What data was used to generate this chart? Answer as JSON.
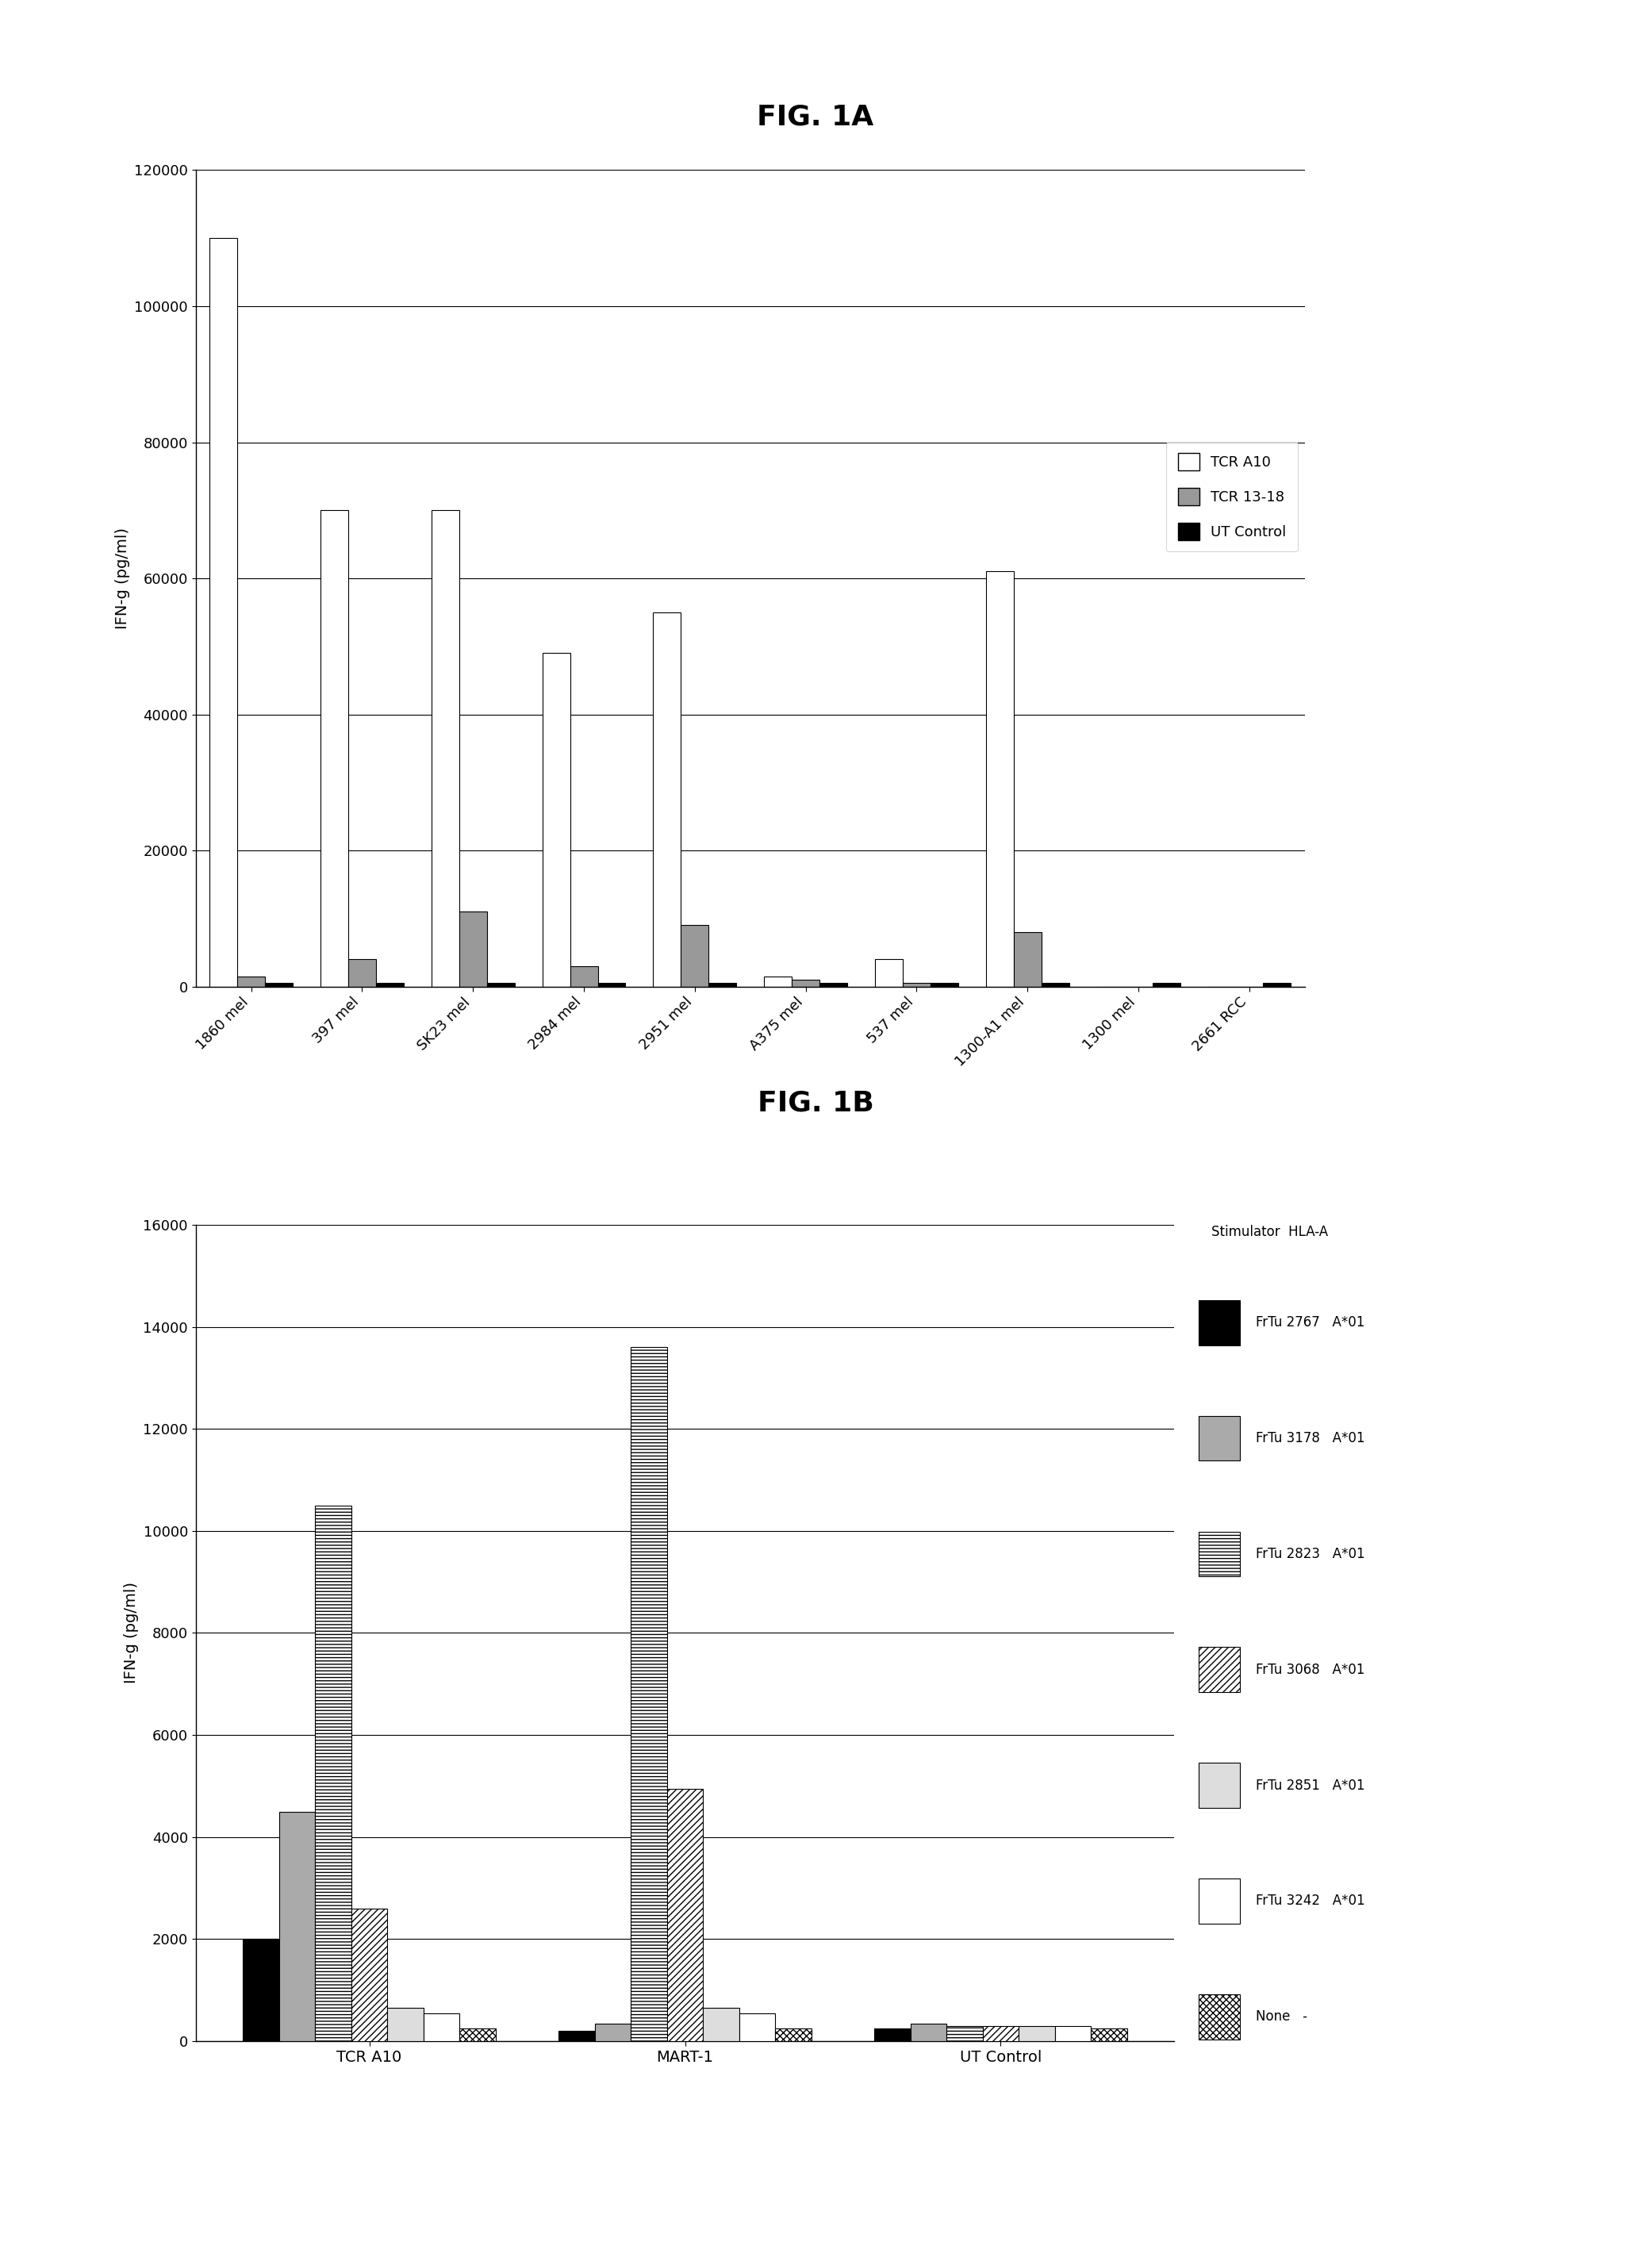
{
  "fig1a": {
    "title": "FIG. 1A",
    "categories": [
      "1860 mel",
      "397 mel",
      "SK23 mel",
      "2984 mel",
      "2951 mel",
      "A375 mel",
      "537 mel",
      "1300-A1 mel",
      "1300 mel",
      "2661 RCC"
    ],
    "tcr_a10": [
      110000,
      70000,
      70000,
      49000,
      55000,
      1500,
      4000,
      61000,
      0,
      0
    ],
    "tcr_1318": [
      1500,
      4000,
      11000,
      3000,
      9000,
      1000,
      500,
      8000,
      0,
      0
    ],
    "ut_control": [
      500,
      500,
      500,
      500,
      500,
      500,
      500,
      500,
      500,
      500
    ],
    "ylabel": "IFN-g (pg/ml)",
    "ylim": [
      0,
      120000
    ],
    "yticks": [
      0,
      20000,
      40000,
      60000,
      80000,
      100000,
      120000
    ]
  },
  "fig1b": {
    "title": "FIG. 1B",
    "categories": [
      "TCR A10",
      "MART-1",
      "UT Control"
    ],
    "series": {
      "FrTu 2767": [
        2000,
        200,
        250
      ],
      "FrTu 3178": [
        4500,
        350,
        350
      ],
      "FrTu 2823": [
        10500,
        13600,
        300
      ],
      "FrTu 3068": [
        2600,
        4950,
        300
      ],
      "FrTu 2851": [
        650,
        650,
        300
      ],
      "FrTu 3242": [
        550,
        550,
        300
      ],
      "None": [
        250,
        250,
        250
      ]
    },
    "legend_hla": {
      "FrTu 2767": "A*01",
      "FrTu 3178": "A*01",
      "FrTu 2823": "A*01",
      "FrTu 3068": "A*01",
      "FrTu 2851": "A*01",
      "FrTu 3242": "A*01",
      "None": "-"
    },
    "ylabel": "IFN-g (pg/ml)",
    "ylim": [
      0,
      16000
    ],
    "yticks": [
      0,
      2000,
      4000,
      6000,
      8000,
      10000,
      12000,
      14000,
      16000
    ]
  },
  "background_color": "#ffffff"
}
